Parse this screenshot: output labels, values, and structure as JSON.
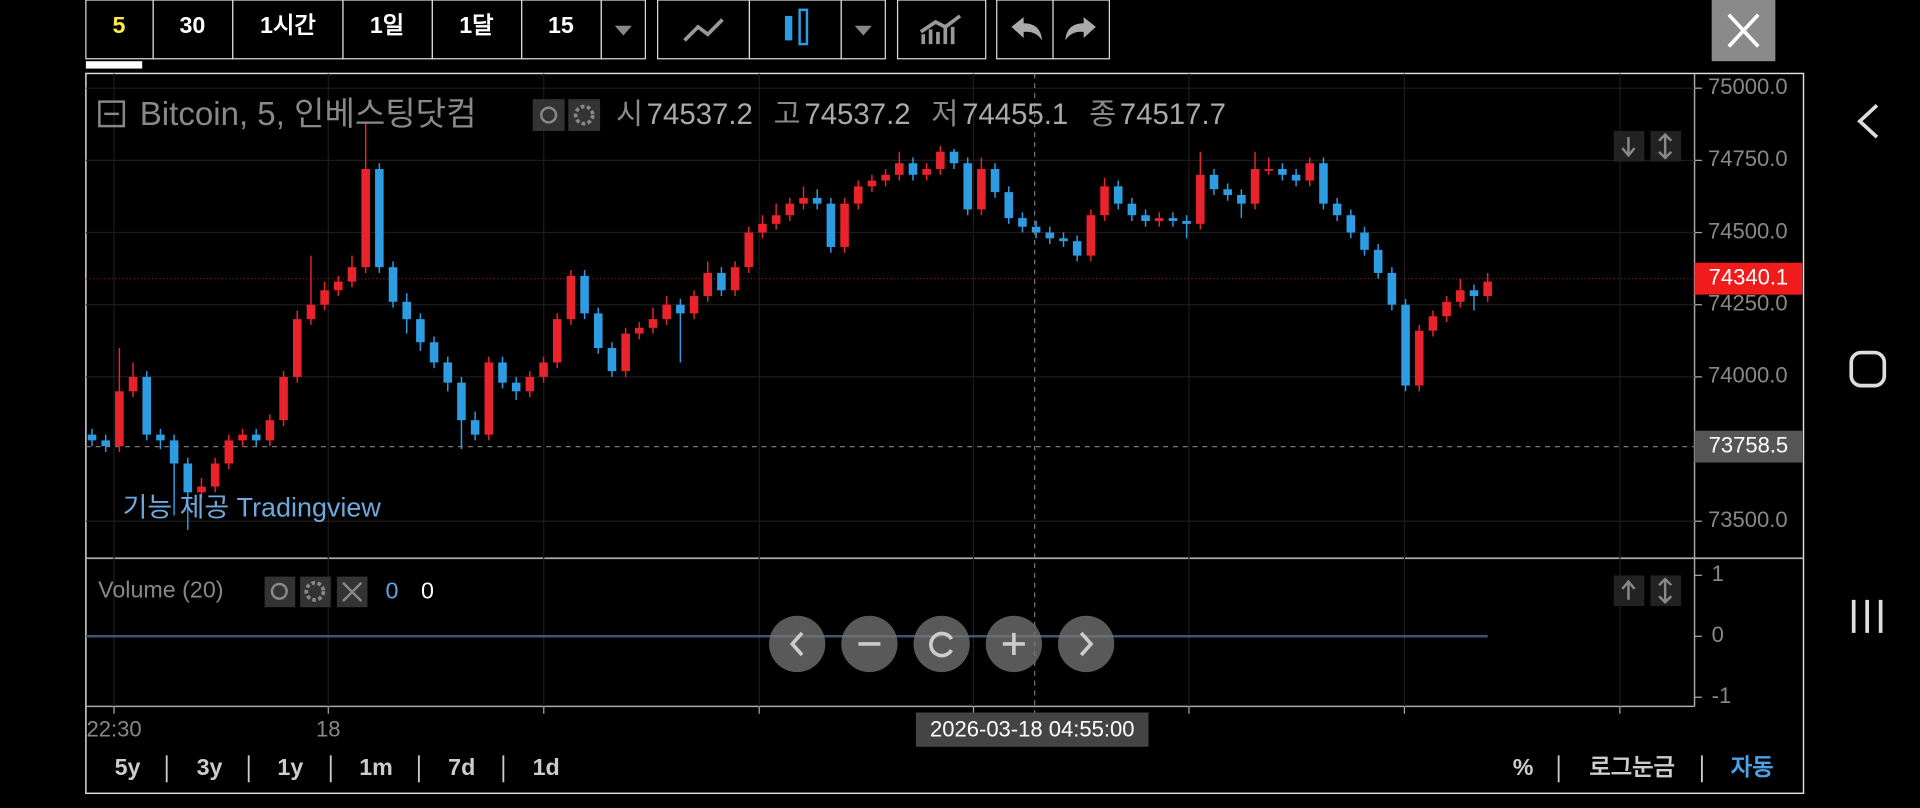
{
  "toolbar": {
    "intervals": [
      "5",
      "30",
      "1시간",
      "1일",
      "1달",
      "15"
    ]
  },
  "chart_data": {
    "type": "candlestick",
    "title": "Bitcoin, 5, 인베스팅닷컴",
    "legend": {
      "labels": [
        "시",
        "고",
        "저",
        "종"
      ],
      "values": [
        "74537.2",
        "74537.2",
        "74455.1",
        "74517.7"
      ]
    },
    "up_color": "#e8232b",
    "down_color": "#2d9ce3",
    "ylim": [
      73376,
      75051
    ],
    "yticks": [
      {
        "value": 75000,
        "label": "75000.0"
      },
      {
        "value": 74750,
        "label": "74750.0"
      },
      {
        "value": 74500,
        "label": "74500.0"
      },
      {
        "value": 74250,
        "label": "74250.0"
      },
      {
        "value": 74000,
        "label": "74000.0"
      },
      {
        "value": 73500,
        "label": "73500.0"
      }
    ],
    "last_price": 74340.1,
    "crosshair_price": 73758.5,
    "xtick_labels": [
      "22:30",
      "18"
    ],
    "crosshair_time": "2026-03-18 04:55:00",
    "credit": "기능 제공 Tradingview",
    "open": [
      73800,
      73780,
      73760,
      73950,
      74000,
      73800,
      73780,
      73700,
      73600,
      73620,
      73700,
      73780,
      73800,
      73780,
      73850,
      74000,
      74200,
      74250,
      74300,
      74330,
      74380,
      74720,
      74380,
      74260,
      74200,
      74120,
      74050,
      73980,
      73850,
      73800,
      74050,
      73980,
      73950,
      74000,
      74050,
      74200,
      74350,
      74220,
      74100,
      74020,
      74150,
      74170,
      74200,
      74250,
      74220,
      74280,
      74360,
      74300,
      74380,
      74500,
      74530,
      74560,
      74600,
      74620,
      74600,
      74450,
      74600,
      74660,
      74680,
      74700,
      74740,
      74700,
      74720,
      74780,
      74740,
      74580,
      74720,
      74640,
      74550,
      74520,
      74500,
      74480,
      74470,
      74420,
      74560,
      74660,
      74600,
      74560,
      74540,
      74550,
      74540,
      74530,
      74700,
      74650,
      74630,
      74600,
      74720,
      74720,
      74700,
      74680,
      74740,
      74600,
      74560,
      74500,
      74440,
      74360,
      74250,
      73970,
      74160,
      74210,
      74260,
      74300,
      74280
    ],
    "high": [
      73820,
      73800,
      74100,
      74050,
      74020,
      73820,
      73800,
      73720,
      73650,
      73720,
      73800,
      73820,
      73820,
      73870,
      74020,
      74230,
      74420,
      74330,
      74350,
      74420,
      74880,
      74740,
      74400,
      74290,
      74220,
      74140,
      74070,
      74000,
      73880,
      74070,
      74070,
      74000,
      74020,
      74070,
      74220,
      74370,
      74370,
      74240,
      74120,
      74170,
      74190,
      74240,
      74280,
      74270,
      74300,
      74400,
      74380,
      74400,
      74520,
      74560,
      74600,
      74620,
      74660,
      74650,
      74620,
      74620,
      74680,
      74700,
      74720,
      74780,
      74760,
      74740,
      74800,
      74790,
      74760,
      74760,
      74740,
      74660,
      74570,
      74540,
      74520,
      74500,
      74490,
      74580,
      74690,
      74680,
      74620,
      74580,
      74570,
      74570,
      74560,
      74780,
      74720,
      74670,
      74650,
      74780,
      74760,
      74740,
      74720,
      74760,
      74760,
      74620,
      74580,
      74520,
      74460,
      74380,
      74270,
      74180,
      74230,
      74280,
      74340,
      74320,
      74360
    ],
    "low": [
      73760,
      73740,
      73740,
      73930,
      73780,
      73750,
      73520,
      73470,
      73580,
      73600,
      73680,
      73760,
      73760,
      73760,
      73830,
      73980,
      74180,
      74230,
      74280,
      74310,
      74360,
      74360,
      74240,
      74150,
      74090,
      74030,
      73950,
      73750,
      73780,
      73780,
      73960,
      73920,
      73930,
      73980,
      74030,
      74180,
      74200,
      74080,
      74000,
      74000,
      74130,
      74150,
      74180,
      74050,
      74200,
      74260,
      74280,
      74280,
      74360,
      74480,
      74510,
      74540,
      74580,
      74580,
      74430,
      74430,
      74580,
      74640,
      74660,
      74680,
      74680,
      74680,
      74700,
      74720,
      74560,
      74560,
      74620,
      74530,
      74500,
      74480,
      74460,
      74450,
      74400,
      74400,
      74540,
      74580,
      74540,
      74520,
      74520,
      74520,
      74480,
      74510,
      74630,
      74610,
      74550,
      74580,
      74700,
      74680,
      74660,
      74660,
      74580,
      74540,
      74480,
      74420,
      74340,
      74230,
      73950,
      73950,
      74140,
      74190,
      74240,
      74230,
      74260
    ],
    "close": [
      73780,
      73760,
      73950,
      74000,
      73800,
      73780,
      73700,
      73600,
      73620,
      73700,
      73780,
      73800,
      73780,
      73850,
      74000,
      74200,
      74250,
      74300,
      74330,
      74380,
      74720,
      74380,
      74260,
      74200,
      74120,
      74050,
      73980,
      73850,
      73800,
      74050,
      73980,
      73950,
      74000,
      74050,
      74200,
      74350,
      74220,
      74100,
      74020,
      74150,
      74170,
      74200,
      74250,
      74220,
      74280,
      74360,
      74300,
      74380,
      74500,
      74530,
      74560,
      74600,
      74620,
      74600,
      74450,
      74600,
      74660,
      74680,
      74700,
      74740,
      74700,
      74720,
      74780,
      74740,
      74580,
      74720,
      74640,
      74550,
      74520,
      74500,
      74480,
      74470,
      74420,
      74560,
      74660,
      74600,
      74560,
      74540,
      74550,
      74540,
      74530,
      74700,
      74650,
      74630,
      74600,
      74720,
      74720,
      74700,
      74680,
      74740,
      74600,
      74560,
      74500,
      74440,
      74360,
      74250,
      73970,
      74160,
      74210,
      74260,
      74300,
      74280,
      74330
    ]
  },
  "volume": {
    "title": "Volume (20)",
    "legend_values": [
      0,
      0
    ],
    "ylim": [
      -1.15,
      1.26
    ],
    "yticks": [
      1,
      0,
      -1
    ]
  },
  "ranges": [
    "5y",
    "3y",
    "1y",
    "1m",
    "7d",
    "1d"
  ],
  "scale_options": [
    "%",
    "로그눈금",
    "자동"
  ]
}
